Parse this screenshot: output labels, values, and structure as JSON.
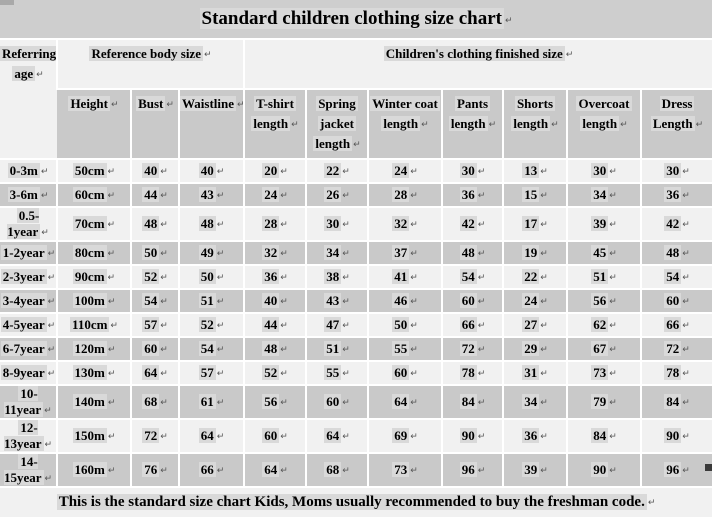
{
  "title": "Standard children clothing size chart",
  "return_mark": "↵",
  "colors": {
    "title_bg": "#cecece",
    "light_cell": "#f1f1f1",
    "gray_cell": "#c9c9c9",
    "text_highlight": "#d9d9d9",
    "gridline": "#ffffff",
    "text": "#000000"
  },
  "header": {
    "referring_age_lines": [
      "Referring",
      "age"
    ],
    "reference_body_size": "Reference body size",
    "finished_size": "Children's clothing finished size",
    "columns": [
      [
        "Height"
      ],
      [
        "Bust"
      ],
      [
        "Waistline"
      ],
      [
        "T-shirt",
        "length"
      ],
      [
        "Spring",
        "jacket",
        "length"
      ],
      [
        "Winter coat",
        "length"
      ],
      [
        "Pants",
        "length"
      ],
      [
        "Shorts",
        "length"
      ],
      [
        "Overcoat",
        "length"
      ],
      [
        "Dress",
        "Length"
      ]
    ]
  },
  "chart_data": {
    "type": "table",
    "title": "Standard children clothing size chart",
    "column_groups": [
      "Referring age",
      "Reference body size",
      "Children's clothing finished size"
    ],
    "columns": [
      "Referring age",
      "Height",
      "Bust",
      "Waistline",
      "T-shirt length",
      "Spring jacket length",
      "Winter coat length",
      "Pants length",
      "Shorts length",
      "Overcoat length",
      "Dress Length"
    ]
  },
  "rows": [
    {
      "age": "0-3m",
      "values": [
        "50cm",
        "40",
        "40",
        "20",
        "22",
        "24",
        "30",
        "13",
        "30",
        "30"
      ]
    },
    {
      "age": "3-6m",
      "values": [
        "60cm",
        "44",
        "43",
        "24",
        "26",
        "28",
        "36",
        "15",
        "34",
        "36"
      ]
    },
    {
      "age": "0.5-1year",
      "values": [
        "70cm",
        "48",
        "48",
        "28",
        "30",
        "32",
        "42",
        "17",
        "39",
        "42"
      ]
    },
    {
      "age": "1-2year",
      "values": [
        "80cm",
        "50",
        "49",
        "32",
        "34",
        "37",
        "48",
        "19",
        "45",
        "48"
      ]
    },
    {
      "age": "2-3year",
      "values": [
        "90cm",
        "52",
        "50",
        "36",
        "38",
        "41",
        "54",
        "22",
        "51",
        "54"
      ]
    },
    {
      "age": "3-4year",
      "values": [
        "100m",
        "54",
        "51",
        "40",
        "43",
        "46",
        "60",
        "24",
        "56",
        "60"
      ]
    },
    {
      "age": "4-5year",
      "values": [
        "110cm",
        "57",
        "52",
        "44",
        "47",
        "50",
        "66",
        "27",
        "62",
        "66"
      ]
    },
    {
      "age": "6-7year",
      "values": [
        "120m",
        "60",
        "54",
        "48",
        "51",
        "55",
        "72",
        "29",
        "67",
        "72"
      ]
    },
    {
      "age": "8-9year",
      "values": [
        "130m",
        "64",
        "57",
        "52",
        "55",
        "60",
        "78",
        "31",
        "73",
        "78"
      ]
    },
    {
      "age": "10-11year",
      "values": [
        "140m",
        "68",
        "61",
        "56",
        "60",
        "64",
        "84",
        "34",
        "79",
        "84"
      ]
    },
    {
      "age": "12-13year",
      "values": [
        "150m",
        "72",
        "64",
        "60",
        "64",
        "69",
        "90",
        "36",
        "84",
        "90"
      ]
    },
    {
      "age": "14-15year",
      "values": [
        "160m",
        "76",
        "66",
        "64",
        "68",
        "73",
        "96",
        "39",
        "90",
        "96"
      ]
    }
  ],
  "footer": "This is the standard size chart Kids,  Moms usually recommended to buy the freshman code."
}
